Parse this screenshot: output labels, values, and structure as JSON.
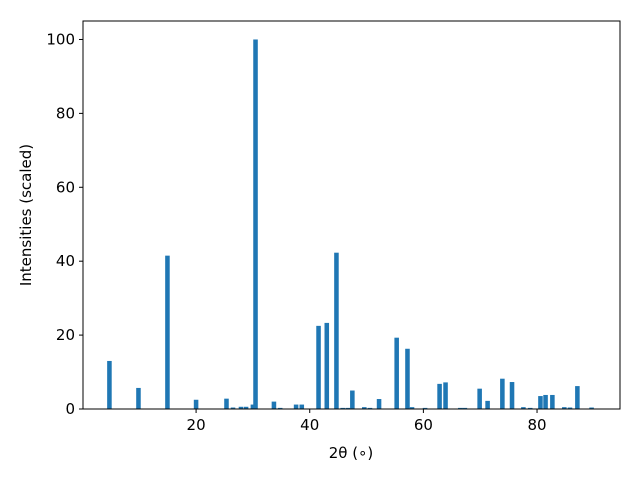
{
  "chart_data": {
    "type": "bar",
    "x_label": "2θ (∘)",
    "y_label": "Intensities (scaled)",
    "x": [
      4.75,
      9.86,
      14.96,
      20.0,
      25.35,
      26.5,
      27.9,
      28.8,
      30.0,
      30.46,
      33.7,
      34.8,
      37.6,
      38.6,
      41.55,
      43.0,
      44.7,
      45.8,
      46.7,
      47.5,
      49.6,
      50.6,
      52.2,
      55.3,
      57.2,
      58.0,
      60.3,
      62.85,
      63.9,
      66.5,
      67.3,
      69.9,
      71.3,
      73.9,
      75.6,
      77.6,
      78.8,
      80.6,
      81.5,
      82.7,
      84.8,
      85.8,
      87.1,
      89.6
    ],
    "values": [
      13,
      5.7,
      41.5,
      2.5,
      2.8,
      0.4,
      0.6,
      0.6,
      1.2,
      100,
      2,
      0.3,
      1.2,
      1.2,
      22.5,
      23.3,
      42.3,
      0.3,
      0.3,
      5,
      0.5,
      0.3,
      2.7,
      19.3,
      16.3,
      0.5,
      0.3,
      6.8,
      7.2,
      0.3,
      0.3,
      5.5,
      2.2,
      8.2,
      7.3,
      0.5,
      0.3,
      3.5,
      3.8,
      3.8,
      0.5,
      0.4,
      6.2,
      0.4
    ],
    "color": "#1f77b4",
    "xlim": [
      0.1,
      94.6
    ],
    "xticks": [
      20,
      40,
      60,
      80
    ],
    "ylim": [
      0,
      105
    ],
    "yticks": [
      0,
      20,
      40,
      60,
      80,
      100
    ]
  }
}
